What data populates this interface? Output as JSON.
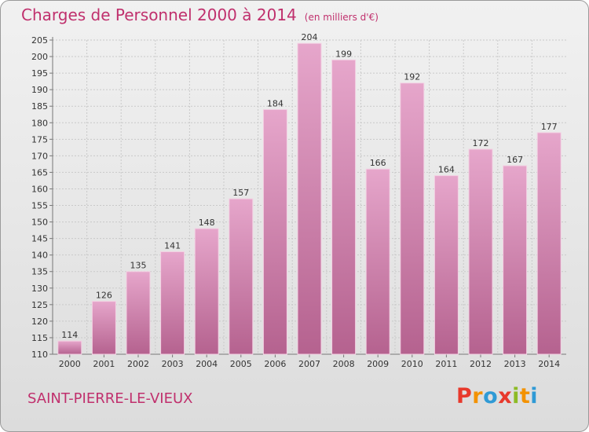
{
  "header": {
    "title": "Charges de Personnel 2000 à 2014",
    "unit": "(en milliers d'€)"
  },
  "footer": {
    "city": "SAINT-PIERRE-LE-VIEUX",
    "logo": [
      "P",
      "r",
      "o",
      "x",
      "i",
      "t",
      "i"
    ],
    "logo_colors": [
      "#e8392c",
      "#f39200",
      "#2f9ad5",
      "#e8392c",
      "#8dbb25",
      "#f39200",
      "#2f9ad5"
    ]
  },
  "chart_data": {
    "type": "bar",
    "categories": [
      "2000",
      "2001",
      "2002",
      "2003",
      "2004",
      "2005",
      "2006",
      "2007",
      "2008",
      "2009",
      "2010",
      "2011",
      "2012",
      "2013",
      "2014"
    ],
    "values": [
      114,
      126,
      135,
      141,
      148,
      157,
      184,
      204,
      199,
      166,
      192,
      164,
      172,
      167,
      177
    ],
    "title": "Charges de Personnel 2000 à 2014",
    "ylim": [
      110,
      205
    ],
    "yticks": [
      110,
      115,
      120,
      125,
      130,
      135,
      140,
      145,
      150,
      155,
      160,
      165,
      170,
      175,
      180,
      185,
      190,
      195,
      200,
      205
    ],
    "grid": true,
    "bar_color": "#d98fb8"
  }
}
